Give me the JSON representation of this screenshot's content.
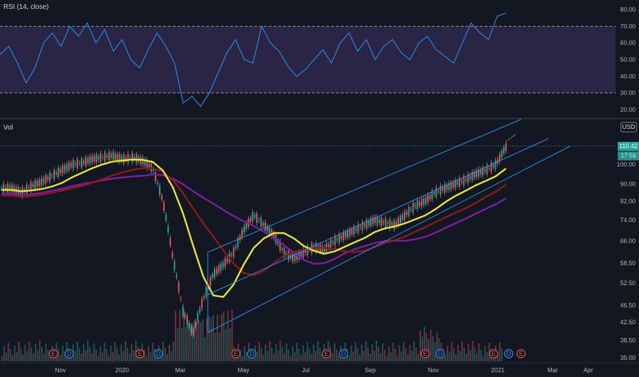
{
  "rsi_panel": {
    "label": "RSI (14, close)",
    "ticks": [
      "80.00",
      "70.00",
      "60.00",
      "50.00",
      "40.00",
      "30.00",
      "20.00"
    ],
    "overbought": 70,
    "oversold": 30,
    "band_color": "#7e57c2",
    "line_color": "#2196f3"
  },
  "price_panel": {
    "vol_label": "Vol",
    "currency": "USD",
    "price_ticks": [
      "100.00",
      "90.00",
      "82.00",
      "74.00",
      "66.00",
      "58.50",
      "52.50",
      "46.50",
      "42.50",
      "38.50",
      "35.00"
    ],
    "last_price": "110.42",
    "secondary_badge": "17:56",
    "up_color": "#26a69a",
    "down_color": "#ef5350"
  },
  "time_axis": {
    "labels": [
      "Nov",
      "2020",
      "Mar",
      "May",
      "Jul",
      "Sep",
      "Nov",
      "2021",
      "Mar",
      "Apr"
    ]
  },
  "events": [
    {
      "type": "E"
    },
    {
      "type": "D"
    },
    {
      "type": "E"
    },
    {
      "type": "D"
    },
    {
      "type": "E"
    },
    {
      "type": "D"
    },
    {
      "type": "E"
    },
    {
      "type": "D"
    },
    {
      "type": "E"
    },
    {
      "type": "D"
    },
    {
      "type": "E"
    },
    {
      "type": "D"
    },
    {
      "type": "E"
    }
  ],
  "chart_data": {
    "type": "candlestick",
    "scale": "log",
    "rsi_series": [
      53,
      58,
      48,
      36,
      45,
      60,
      66,
      58,
      70,
      64,
      72,
      60,
      68,
      55,
      62,
      50,
      45,
      56,
      66,
      58,
      48,
      24,
      28,
      22,
      30,
      42,
      54,
      62,
      50,
      48,
      70,
      60,
      55,
      46,
      40,
      44,
      50,
      56,
      48,
      60,
      66,
      55,
      62,
      50,
      58,
      62,
      54,
      50,
      60,
      64,
      56,
      52,
      48,
      60,
      72,
      66,
      62,
      76,
      78
    ],
    "closes": [
      88,
      88,
      86,
      89,
      91,
      94,
      97,
      100,
      101,
      103,
      104,
      105,
      103,
      104,
      102,
      98,
      82,
      60,
      45,
      40,
      48,
      55,
      58,
      62,
      70,
      76,
      72,
      68,
      62,
      60,
      62,
      64,
      63,
      66,
      68,
      70,
      72,
      74,
      73,
      72,
      76,
      80,
      82,
      86,
      88,
      90,
      92,
      95,
      97,
      100,
      110
    ]
  }
}
